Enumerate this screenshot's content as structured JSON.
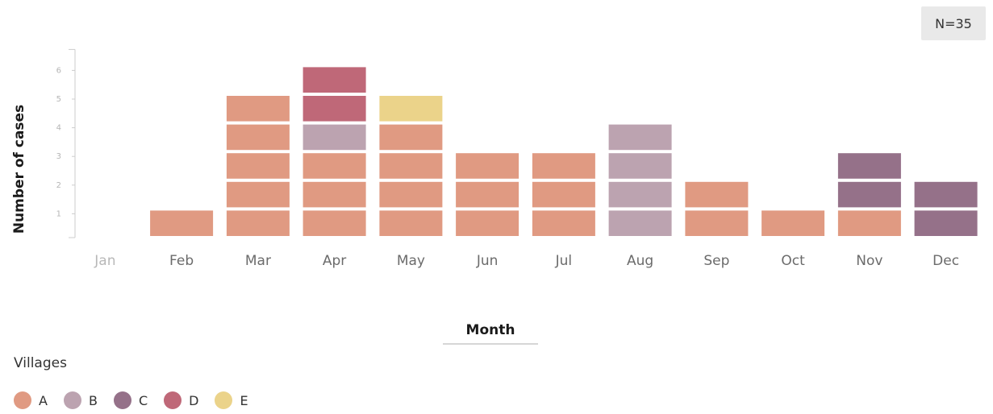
{
  "badge": {
    "text": "N=35"
  },
  "legend": {
    "title": "Villages",
    "items": [
      {
        "label": "A",
        "color": "#e09a82"
      },
      {
        "label": "B",
        "color": "#bca3b0"
      },
      {
        "label": "C",
        "color": "#957189"
      },
      {
        "label": "D",
        "color": "#bf6878"
      },
      {
        "label": "E",
        "color": "#ebd38a"
      }
    ]
  },
  "chart_data": {
    "type": "bar",
    "stacked": true,
    "unit_blocks": true,
    "title": "",
    "xlabel": "Month",
    "ylabel": "Number of cases",
    "ylim": [
      0,
      6
    ],
    "yticks": [
      1,
      2,
      3,
      4,
      5,
      6
    ],
    "grid": false,
    "categories": [
      "Jan",
      "Feb",
      "Mar",
      "Apr",
      "May",
      "Jun",
      "Jul",
      "Aug",
      "Sep",
      "Oct",
      "Nov",
      "Dec"
    ],
    "series": [
      {
        "name": "A",
        "color": "#e09a82",
        "values": [
          0,
          1,
          5,
          3,
          4,
          3,
          3,
          0,
          2,
          1,
          1,
          0
        ]
      },
      {
        "name": "B",
        "color": "#bca3b0",
        "values": [
          0,
          0,
          0,
          1,
          0,
          0,
          0,
          4,
          0,
          0,
          0,
          0
        ]
      },
      {
        "name": "C",
        "color": "#957189",
        "values": [
          0,
          0,
          0,
          0,
          0,
          0,
          0,
          0,
          0,
          0,
          2,
          2
        ]
      },
      {
        "name": "D",
        "color": "#bf6878",
        "values": [
          0,
          0,
          0,
          2,
          0,
          0,
          0,
          0,
          0,
          0,
          0,
          0
        ]
      },
      {
        "name": "E",
        "color": "#ebd38a",
        "values": [
          0,
          0,
          0,
          0,
          1,
          0,
          0,
          0,
          0,
          0,
          0,
          0
        ]
      }
    ],
    "total": 35,
    "legend_position": "bottom-left"
  }
}
